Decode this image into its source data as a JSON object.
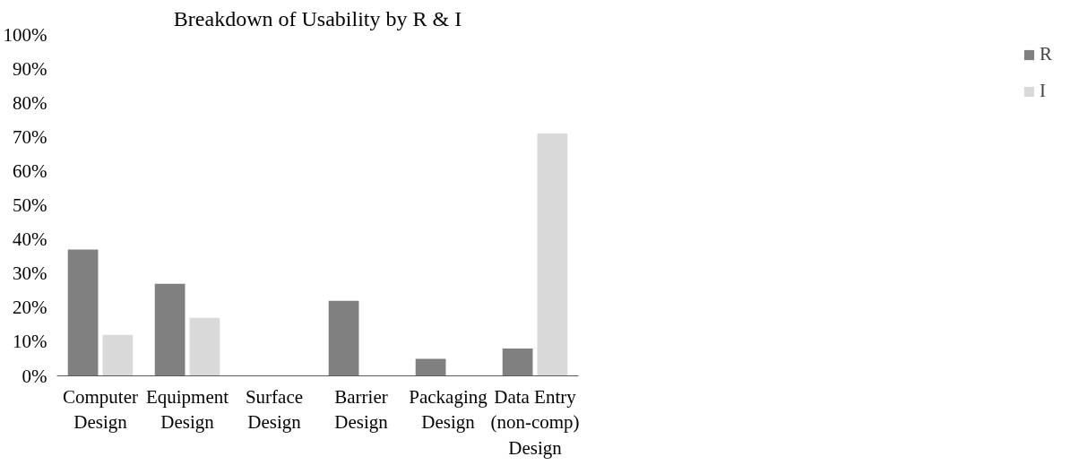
{
  "chart_data": {
    "type": "bar",
    "title": "Breakdown of Usability by R & I",
    "categories": [
      "Computer Design",
      "Equipment Design",
      "Surface Design",
      "Barrier Design",
      "Packaging Design",
      "Data Entry (non-comp) Design"
    ],
    "series": [
      {
        "name": "R",
        "color": "#808080",
        "values": [
          37,
          27,
          0,
          22,
          5,
          8
        ]
      },
      {
        "name": "I",
        "color": "#d9d9d9",
        "values": [
          12,
          17,
          0,
          0,
          0,
          71
        ]
      }
    ],
    "ylim": [
      0,
      100
    ],
    "yticks": [
      {
        "value": 0,
        "label": "0%"
      },
      {
        "value": 10,
        "label": "10%"
      },
      {
        "value": 20,
        "label": "20%"
      },
      {
        "value": 30,
        "label": "30%"
      },
      {
        "value": 40,
        "label": "40%"
      },
      {
        "value": 50,
        "label": "50%"
      },
      {
        "value": 60,
        "label": "60%"
      },
      {
        "value": 70,
        "label": "70%"
      },
      {
        "value": 80,
        "label": "80%"
      },
      {
        "value": 90,
        "label": "90%"
      },
      {
        "value": 100,
        "label": "100%"
      }
    ],
    "grid": false,
    "legend": "right"
  }
}
